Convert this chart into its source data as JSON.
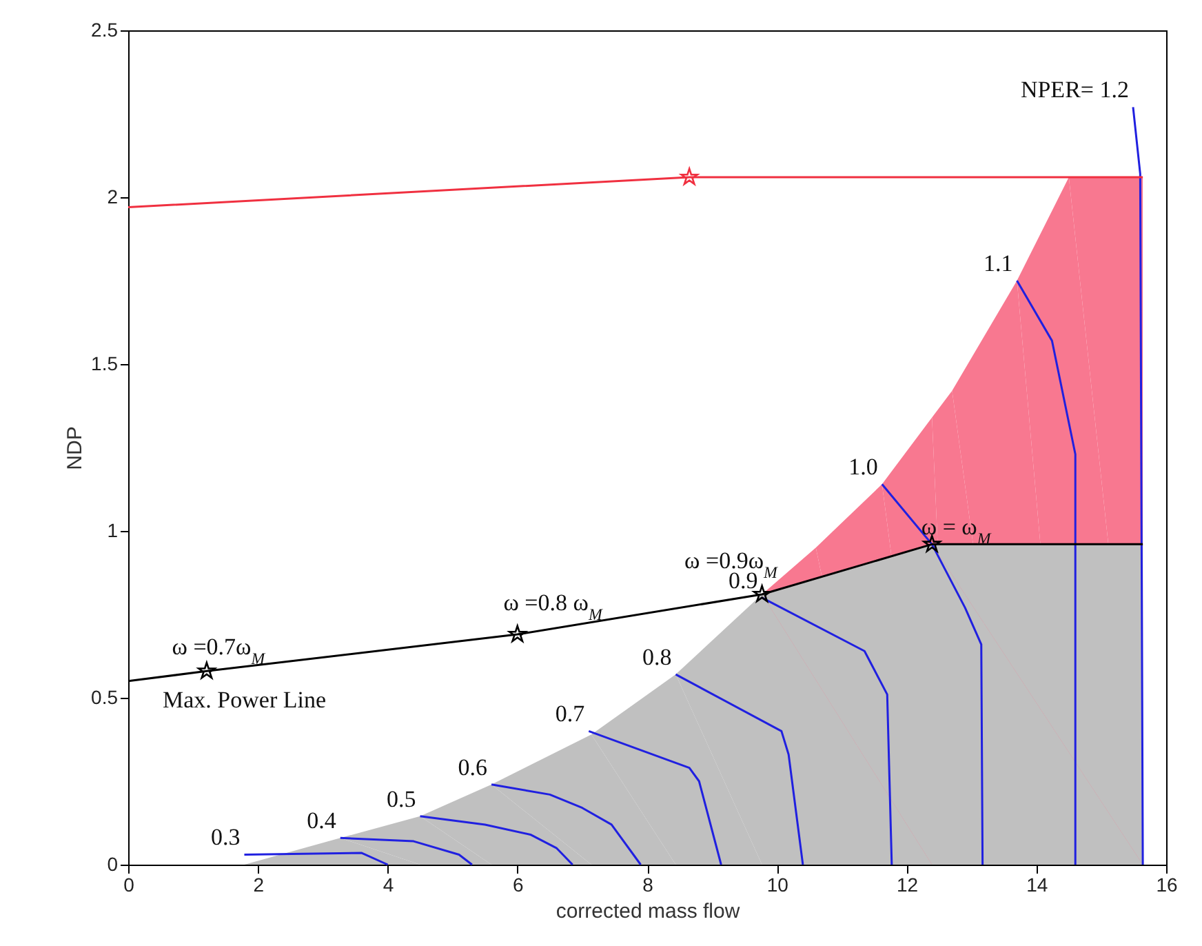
{
  "chart_data": {
    "type": "line",
    "xlabel": "corrected mass flow",
    "ylabel": "NDP",
    "xlim": [
      0,
      16
    ],
    "xticks": [
      0,
      2,
      4,
      6,
      8,
      10,
      12,
      14,
      16
    ],
    "ylim": [
      0,
      2.5
    ],
    "yticks": [
      0,
      0.5,
      1,
      1.5,
      2,
      2.5
    ],
    "grid": false,
    "series": [
      {
        "type": "area",
        "color": "#f87890",
        "x": [
          9.77,
          10.6,
          11.62,
          12.39,
          12.7,
          13.7,
          14.5,
          15.64
        ],
        "values": [
          0.81,
          0.95,
          1.14,
          1.34,
          1.42,
          1.75,
          2.06,
          2.06
        ]
      },
      {
        "type": "area",
        "color": "#c0c0c0",
        "x": [
          1.79,
          3.27,
          4.5,
          5.6,
          7.14,
          8.44,
          9.77,
          12.39,
          15.64,
          15.64
        ],
        "values": [
          0,
          0.08,
          0.145,
          0.24,
          0.39,
          0.57,
          0.81,
          0.96,
          0.96,
          0
        ]
      },
      {
        "color": "#2020e0",
        "x": [
          1.79,
          3.6,
          4.0
        ],
        "values": [
          0.03,
          0.035,
          0
        ]
      },
      {
        "color": "#2020e0",
        "x": [
          3.27,
          4.4,
          5.1,
          5.3
        ],
        "values": [
          0.08,
          0.07,
          0.03,
          0
        ]
      },
      {
        "color": "#2020e0",
        "x": [
          4.5,
          5.5,
          6.2,
          6.6,
          6.85
        ],
        "values": [
          0.145,
          0.12,
          0.09,
          0.05,
          0
        ]
      },
      {
        "color": "#2020e0",
        "x": [
          5.6,
          6.5,
          7.0,
          7.45,
          7.9
        ],
        "values": [
          0.24,
          0.21,
          0.17,
          0.12,
          0
        ]
      },
      {
        "color": "#2020e0",
        "x": [
          7.1,
          8.65,
          8.8,
          9.14
        ],
        "values": [
          0.4,
          0.29,
          0.25,
          0
        ]
      },
      {
        "color": "#2020e0",
        "x": [
          8.44,
          10.07,
          10.18,
          10.4
        ],
        "values": [
          0.57,
          0.4,
          0.33,
          0
        ]
      },
      {
        "color": "#2020e0",
        "x": [
          9.77,
          11.35,
          11.7,
          11.77
        ],
        "values": [
          0.8,
          0.64,
          0.51,
          0
        ]
      },
      {
        "color": "#2020e0",
        "x": [
          11.62,
          12.39,
          12.9,
          13.15,
          13.17
        ],
        "values": [
          1.14,
          0.96,
          0.77,
          0.66,
          0
        ]
      },
      {
        "color": "#2020e0",
        "x": [
          13.7,
          14.24,
          14.6,
          14.6
        ],
        "values": [
          1.75,
          1.57,
          1.23,
          0
        ]
      },
      {
        "color": "#2020e0",
        "x": [
          15.49,
          15.6,
          15.64
        ],
        "values": [
          2.27,
          2.07,
          0
        ]
      },
      {
        "color": "#000000",
        "x": [
          0,
          1.21,
          6.0,
          9.77,
          12.39,
          15.64
        ],
        "values": [
          0.55,
          0.58,
          0.69,
          0.81,
          0.96,
          0.96
        ]
      },
      {
        "color": "#f03040",
        "x": [
          0,
          8.65,
          15.64
        ],
        "values": [
          1.97,
          2.06,
          2.06
        ]
      },
      {
        "type": "scatter",
        "color": "#000000",
        "marker": "star",
        "x": [
          1.21,
          6.0,
          9.77,
          12.39
        ],
        "values": [
          0.58,
          0.69,
          0.81,
          0.96
        ]
      },
      {
        "type": "scatter",
        "color": "#f03040",
        "marker": "star",
        "x": [
          8.65
        ],
        "values": [
          2.06
        ]
      }
    ],
    "annotations": [
      {
        "text": "0.3",
        "x": 1.79,
        "y": 0.03
      },
      {
        "text": "0.4",
        "x": 3.27,
        "y": 0.08
      },
      {
        "text": "0.5",
        "x": 4.5,
        "y": 0.145
      },
      {
        "text": "0.6",
        "x": 5.6,
        "y": 0.24
      },
      {
        "text": "0.7",
        "x": 7.1,
        "y": 0.4
      },
      {
        "text": "0.8",
        "x": 8.44,
        "y": 0.57
      },
      {
        "text": "0.9",
        "x": 9.77,
        "y": 0.8
      },
      {
        "text": "1.0",
        "x": 11.62,
        "y": 1.14
      },
      {
        "text": "1.1",
        "x": 13.7,
        "y": 1.75
      },
      {
        "text": "NPER= 1.2",
        "x": 15.49,
        "y": 2.27
      },
      {
        "text": "ω =0.7ω$_{M}$",
        "x": 2.17,
        "y": 0.602
      },
      {
        "text": "ω =0.8 ω$_{M}$",
        "x": 7.37,
        "y": 0.734
      },
      {
        "text": "ω =0.9ω$_{M}$",
        "x": 10.07,
        "y": 0.86
      },
      {
        "text": "ω = ω$_{M}$",
        "x": 13.36,
        "y": 0.96
      },
      "Max. Power Line"
    ]
  }
}
